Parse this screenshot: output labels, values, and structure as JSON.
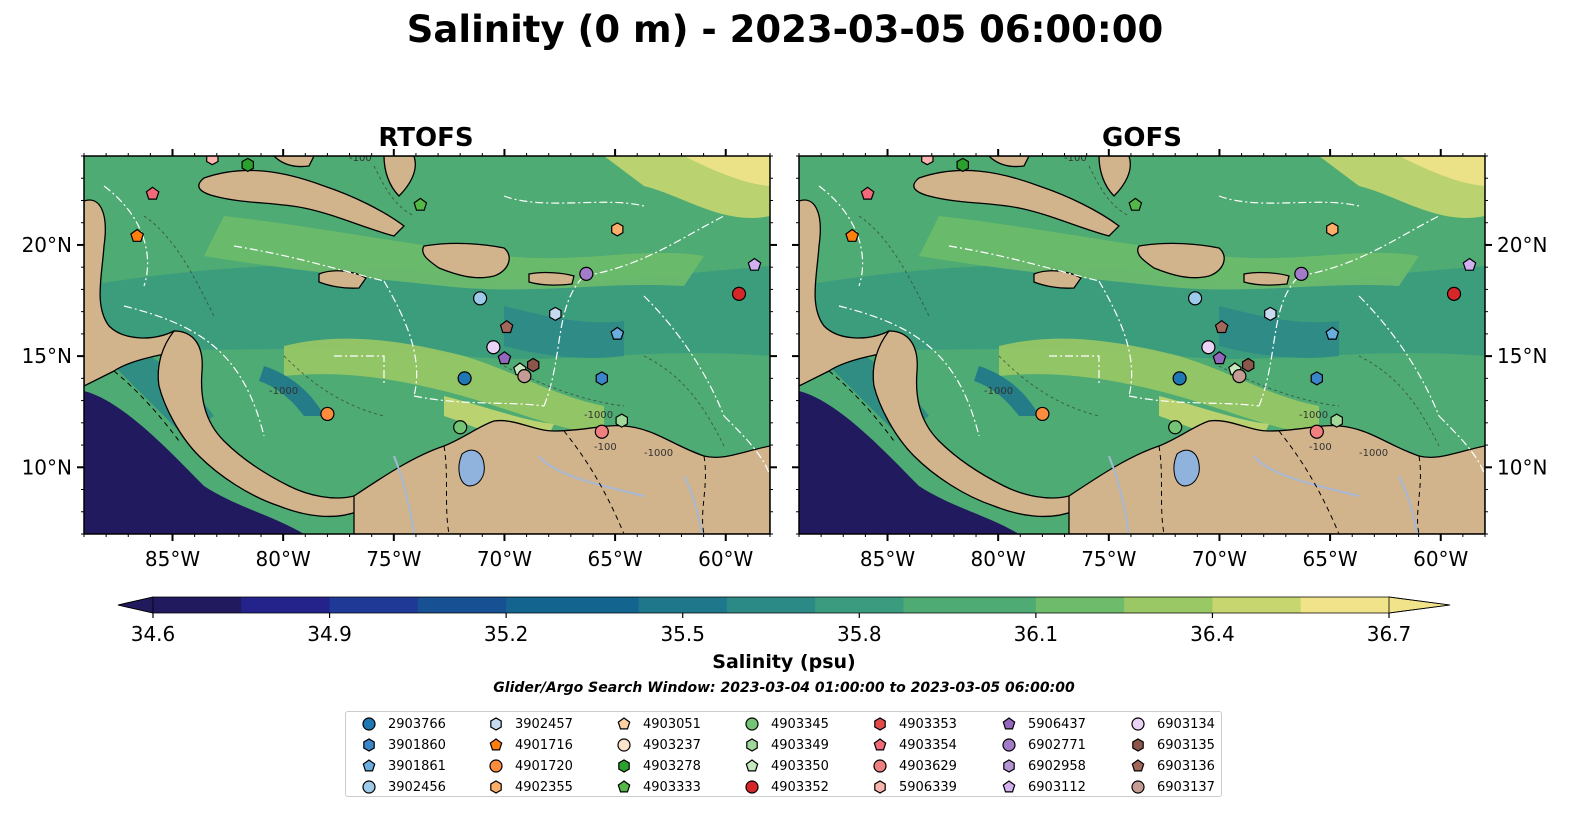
{
  "figure": {
    "title": "Salinity (0 m) - 2023-03-05 06:00:00",
    "search_window": "Glider/Argo Search Window: 2023-03-04 01:00:00 to 2023-03-05 06:00:00"
  },
  "colors": {
    "land": "#d2b48c",
    "lake": "#8fb3dd",
    "river": "#a7b8d4",
    "colormap": [
      "#221a5f",
      "#24238c",
      "#1f3a96",
      "#175193",
      "#136590",
      "#1f778b",
      "#2c8a86",
      "#3b9b7e",
      "#4eab73",
      "#6ebb6b",
      "#9ac865",
      "#c7d66f",
      "#f1e38a"
    ]
  },
  "chart_data": [
    {
      "type": "heatmap",
      "title": "RTOFS",
      "xlim": [
        -89,
        -58
      ],
      "ylim": [
        7,
        24
      ],
      "x_ticks": [
        -85,
        -80,
        -75,
        -70,
        -65,
        -60
      ],
      "x_tick_labels": [
        "85°W",
        "80°W",
        "75°W",
        "70°W",
        "65°W",
        "60°W"
      ],
      "y_ticks": [
        10,
        15,
        20
      ],
      "y_tick_labels": [
        "10°N",
        "15°N",
        "20°N"
      ],
      "contour_labels": [
        "-100",
        "-1000",
        "-1000",
        "-1000",
        "-100"
      ]
    },
    {
      "type": "heatmap",
      "title": "GOFS",
      "xlim": [
        -89,
        -58
      ],
      "ylim": [
        7,
        24
      ],
      "x_ticks": [
        -85,
        -80,
        -75,
        -70,
        -65,
        -60
      ],
      "x_tick_labels": [
        "85°W",
        "80°W",
        "75°W",
        "70°W",
        "65°W",
        "60°W"
      ],
      "y_ticks": [
        10,
        15,
        20
      ],
      "y_tick_labels": [
        "10°N",
        "15°N",
        "20°N"
      ],
      "contour_labels": [
        "-100",
        "-1000",
        "-1000",
        "-1000",
        "-100"
      ]
    }
  ],
  "colorbar": {
    "label": "Salinity (psu)",
    "min": 34.6,
    "max": 36.7,
    "extend": "both",
    "ticks": [
      34.6,
      34.9,
      35.2,
      35.5,
      35.8,
      36.1,
      36.4,
      36.7
    ],
    "tick_labels": [
      "34.6",
      "34.9",
      "35.2",
      "35.5",
      "35.8",
      "36.1",
      "36.4",
      "36.7"
    ]
  },
  "floats": [
    {
      "id": "2903766",
      "marker": "circle",
      "color": "#1f77b4",
      "lon": -71.8,
      "lat": 14.0
    },
    {
      "id": "3901860",
      "marker": "hexagon",
      "color": "#3a86c8",
      "lon": -65.6,
      "lat": 14.0
    },
    {
      "id": "3901861",
      "marker": "pentagon",
      "color": "#6aaee0",
      "lon": -64.9,
      "lat": 16.0
    },
    {
      "id": "3902456",
      "marker": "circle",
      "color": "#9ecae9",
      "lon": -71.1,
      "lat": 17.6
    },
    {
      "id": "3902457",
      "marker": "hexagon",
      "color": "#c6dbef",
      "lon": -67.7,
      "lat": 16.9
    },
    {
      "id": "4901716",
      "marker": "pentagon",
      "color": "#ff7f0e",
      "lon": -86.6,
      "lat": 20.4
    },
    {
      "id": "4901720",
      "marker": "circle",
      "color": "#fd8d3c",
      "lon": -78.0,
      "lat": 12.4
    },
    {
      "id": "4902355",
      "marker": "hexagon",
      "color": "#fdae6b",
      "lon": -64.9,
      "lat": 20.7
    },
    {
      "id": "4903051",
      "marker": "pentagon",
      "color": "#fdd0a2",
      "lon": -84.8,
      "lat": 24.3
    },
    {
      "id": "4903237",
      "marker": "circle",
      "color": "#fee6ce",
      "lon": -83.4,
      "lat": 24.5
    },
    {
      "id": "4903278",
      "marker": "hexagon",
      "color": "#2ca02c",
      "lon": -81.6,
      "lat": 23.6
    },
    {
      "id": "4903333",
      "marker": "pentagon",
      "color": "#54b848",
      "lon": -73.8,
      "lat": 21.8
    },
    {
      "id": "4903345",
      "marker": "circle",
      "color": "#74c476",
      "lon": -72.0,
      "lat": 11.8
    },
    {
      "id": "4903349",
      "marker": "hexagon",
      "color": "#a1d99b",
      "lon": -64.7,
      "lat": 12.1
    },
    {
      "id": "4903350",
      "marker": "pentagon",
      "color": "#c7e9c0",
      "lon": -69.3,
      "lat": 14.4
    },
    {
      "id": "4903352",
      "marker": "circle",
      "color": "#d62728",
      "lon": -59.4,
      "lat": 17.8
    },
    {
      "id": "4903353",
      "marker": "hexagon",
      "color": "#e34a4a",
      "lon": -84.0,
      "lat": 25.0
    },
    {
      "id": "4903354",
      "marker": "pentagon",
      "color": "#f2697a",
      "lon": -85.9,
      "lat": 22.3
    },
    {
      "id": "4903629",
      "marker": "circle",
      "color": "#f08080",
      "lon": -65.6,
      "lat": 11.6
    },
    {
      "id": "5906339",
      "marker": "hexagon",
      "color": "#fbb4ae",
      "lon": -83.2,
      "lat": 23.9
    },
    {
      "id": "5906437",
      "marker": "pentagon",
      "color": "#9467bd",
      "lon": -70.0,
      "lat": 14.9
    },
    {
      "id": "6902771",
      "marker": "circle",
      "color": "#a27cc9",
      "lon": -66.3,
      "lat": 18.7
    },
    {
      "id": "6902958",
      "marker": "hexagon",
      "color": "#b594d4",
      "lon": -82.8,
      "lat": 25.2
    },
    {
      "id": "6903112",
      "marker": "pentagon",
      "color": "#d2b0f0",
      "lon": -58.7,
      "lat": 19.1
    },
    {
      "id": "6903134",
      "marker": "circle",
      "color": "#ead3f5",
      "lon": -70.5,
      "lat": 15.4
    },
    {
      "id": "6903135",
      "marker": "hexagon",
      "color": "#8c564b",
      "lon": -68.7,
      "lat": 14.6
    },
    {
      "id": "6903136",
      "marker": "pentagon",
      "color": "#a0675a",
      "lon": -69.9,
      "lat": 16.3
    },
    {
      "id": "6903137",
      "marker": "circle",
      "color": "#c49c94",
      "lon": -69.1,
      "lat": 14.1
    }
  ],
  "legend": {
    "columns": 7,
    "rows": 4
  }
}
